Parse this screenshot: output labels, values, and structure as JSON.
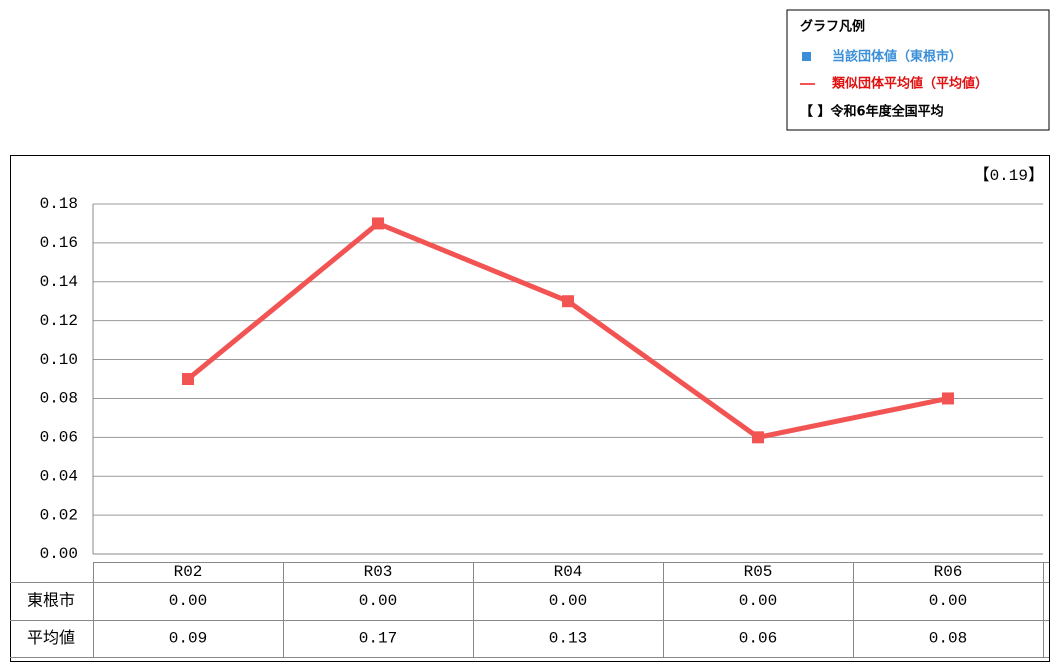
{
  "chart_data": {
    "type": "line",
    "categories": [
      "R02",
      "R03",
      "R04",
      "R05",
      "R06"
    ],
    "series": [
      {
        "name": "東根市",
        "color": "#3b8fd8",
        "values": [
          0,
          0,
          0,
          0,
          0
        ],
        "value_labels": [
          "0.00",
          "0.00",
          "0.00",
          "0.00",
          "0.00"
        ]
      },
      {
        "name": "平均値",
        "color": "#f25454",
        "values": [
          0.09,
          0.17,
          0.13,
          0.06,
          0.08
        ],
        "value_labels": [
          "0.09",
          "0.17",
          "0.13",
          "0.06",
          "0.08"
        ]
      }
    ],
    "ylim": [
      0,
      0.18
    ],
    "yticks": [
      {
        "value": 0,
        "label": "0.00"
      },
      {
        "value": 0.02,
        "label": "0.02"
      },
      {
        "value": 0.04,
        "label": "0.04"
      },
      {
        "value": 0.06,
        "label": "0.06"
      },
      {
        "value": 0.08,
        "label": "0.08"
      },
      {
        "value": 0.1,
        "label": "0.10"
      },
      {
        "value": 0.12,
        "label": "0.12"
      },
      {
        "value": 0.14,
        "label": "0.14"
      },
      {
        "value": 0.16,
        "label": "0.16"
      },
      {
        "value": 0.18,
        "label": "0.18"
      }
    ],
    "grid": true,
    "annotation": "【0.19】",
    "legend": {
      "title": "グラフ凡例",
      "items": [
        "当該団体値（東根市）",
        "類似団体平均値（平均値）",
        "【 】令和6年度全国平均"
      ]
    }
  }
}
